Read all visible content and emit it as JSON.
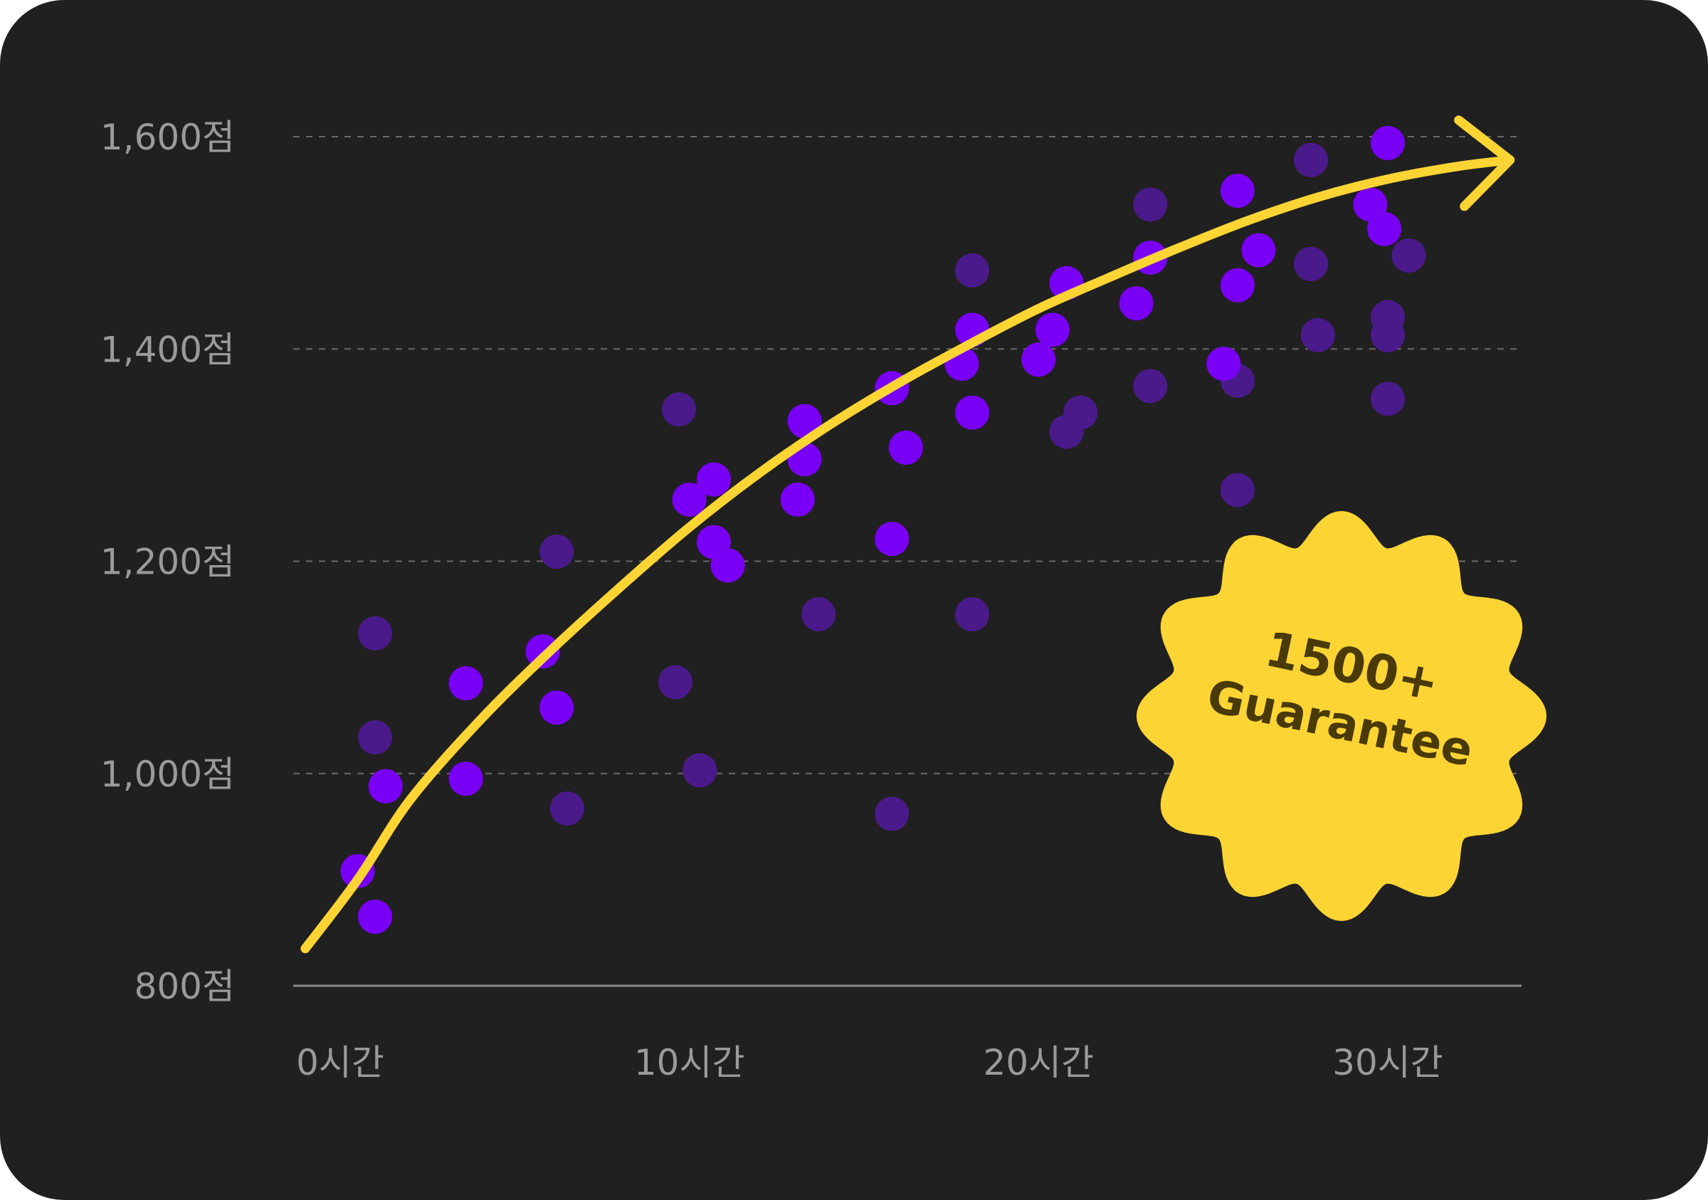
{
  "colors": {
    "background": "#202020",
    "grid": "#6a6a6a",
    "axis": "#8c8c8c",
    "tick_text": "#9a9a9a",
    "point_bright": "#7a00f5",
    "point_dim": "#4a1a8a",
    "trend": "#fcd535",
    "badge_fill": "#fcd535",
    "badge_text": "#4a3a08"
  },
  "badge": {
    "line1": "1500+",
    "line2": "Guarantee",
    "icon": "starburst-badge"
  },
  "chart_data": {
    "type": "scatter",
    "title": "",
    "xlabel": "",
    "ylabel": "",
    "xlim": [
      -1,
      33.5
    ],
    "ylim": [
      800,
      1620
    ],
    "x_ticks": [
      0,
      10,
      20,
      30
    ],
    "x_tick_labels": [
      "0시간",
      "10시간",
      "20시간",
      "30시간"
    ],
    "y_ticks": [
      800,
      1000,
      1200,
      1400,
      1600
    ],
    "y_tick_labels": [
      "800점",
      "1,000점",
      "1,200점",
      "1,400점",
      "1,600점"
    ],
    "grid": "horizontal dashed",
    "legend": "none",
    "trend_line": {
      "shape": "curved arrow",
      "x": [
        -1,
        0.5,
        2,
        4,
        6,
        8,
        10,
        12,
        14,
        16,
        18,
        20,
        22,
        24,
        26,
        28,
        30,
        32,
        33.5
      ],
      "y": [
        835,
        900,
        975,
        1050,
        1115,
        1175,
        1232,
        1283,
        1328,
        1368,
        1404,
        1438,
        1467,
        1495,
        1521,
        1543,
        1560,
        1572,
        1578
      ]
    },
    "series": [
      {
        "values": [
          {
            "x": 0.5,
            "y": 908
          },
          {
            "x": 1,
            "y": 865
          },
          {
            "x": 1.3,
            "y": 988
          },
          {
            "x": 3.6,
            "y": 1085
          },
          {
            "x": 3.6,
            "y": 995
          },
          {
            "x": 5.8,
            "y": 1115
          },
          {
            "x": 6.2,
            "y": 1062
          },
          {
            "x": 10,
            "y": 1258
          },
          {
            "x": 10.7,
            "y": 1277
          },
          {
            "x": 10.7,
            "y": 1218
          },
          {
            "x": 11.1,
            "y": 1196
          },
          {
            "x": 13.1,
            "y": 1258
          },
          {
            "x": 13.3,
            "y": 1332
          },
          {
            "x": 13.3,
            "y": 1296
          },
          {
            "x": 15.8,
            "y": 1221
          },
          {
            "x": 15.8,
            "y": 1363
          },
          {
            "x": 16.2,
            "y": 1307
          },
          {
            "x": 17.8,
            "y": 1386
          },
          {
            "x": 18.1,
            "y": 1418
          },
          {
            "x": 18.1,
            "y": 1340
          },
          {
            "x": 20,
            "y": 1390
          },
          {
            "x": 20.4,
            "y": 1418
          },
          {
            "x": 20.8,
            "y": 1462
          },
          {
            "x": 22.8,
            "y": 1443
          },
          {
            "x": 23.2,
            "y": 1486
          },
          {
            "x": 25.3,
            "y": 1386
          },
          {
            "x": 25.7,
            "y": 1549
          },
          {
            "x": 25.7,
            "y": 1460
          },
          {
            "x": 26.3,
            "y": 1493
          },
          {
            "x": 29.5,
            "y": 1536
          },
          {
            "x": 29.9,
            "y": 1513
          },
          {
            "x": 30,
            "y": 1594
          }
        ]
      },
      {
        "values": [
          {
            "x": 1,
            "y": 1132
          },
          {
            "x": 1,
            "y": 1034
          },
          {
            "x": 6.2,
            "y": 1209
          },
          {
            "x": 6.5,
            "y": 967
          },
          {
            "x": 9.6,
            "y": 1086
          },
          {
            "x": 9.7,
            "y": 1343
          },
          {
            "x": 10.3,
            "y": 1003
          },
          {
            "x": 13.7,
            "y": 1150
          },
          {
            "x": 15.8,
            "y": 962
          },
          {
            "x": 18.1,
            "y": 1150
          },
          {
            "x": 18.1,
            "y": 1474
          },
          {
            "x": 20.8,
            "y": 1322
          },
          {
            "x": 21.2,
            "y": 1340
          },
          {
            "x": 23.2,
            "y": 1536
          },
          {
            "x": 23.2,
            "y": 1365
          },
          {
            "x": 25.7,
            "y": 1370
          },
          {
            "x": 25.7,
            "y": 1267
          },
          {
            "x": 27.8,
            "y": 1480
          },
          {
            "x": 27.8,
            "y": 1578
          },
          {
            "x": 28,
            "y": 1413
          },
          {
            "x": 30,
            "y": 1430
          },
          {
            "x": 30,
            "y": 1413
          },
          {
            "x": 30,
            "y": 1353
          },
          {
            "x": 30.6,
            "y": 1488
          }
        ]
      }
    ]
  }
}
